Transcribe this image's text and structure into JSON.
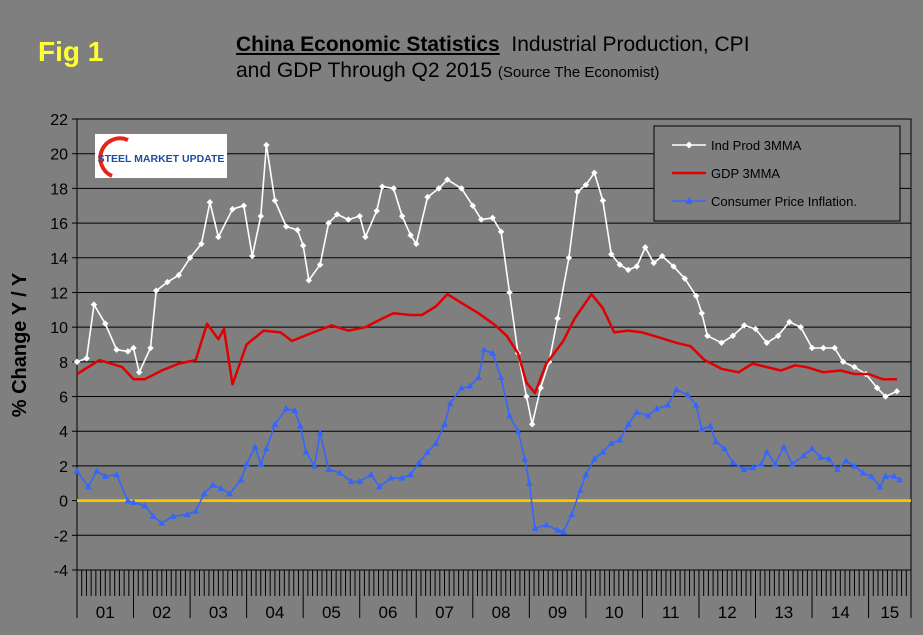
{
  "fig_label": "Fig 1",
  "title": {
    "main": "China Economic Statistics",
    "rest_line1": "Industrial Production, CPI",
    "line2": "and GDP Through Q2 2015",
    "source": "(Source The Economist)"
  },
  "logo": {
    "text": "STEEL MARKET UPDATE"
  },
  "colors": {
    "background": "#7f7f7f",
    "plot_background": "#7f7f7f",
    "ind_prod": "#ffffff",
    "gdp": "#e00000",
    "cpi": "#3366ff",
    "zero_line": "#ffcc00",
    "fig_label": "#ffff33"
  },
  "chart_data": {
    "type": "line",
    "title": "China Economic Statistics Industrial Production, CPI and GDP Through Q2 2015",
    "xlabel": "",
    "ylabel": "% Change Y / Y",
    "ylim": [
      -4,
      22
    ],
    "yticks": [
      "-4",
      "-2",
      "0",
      "2",
      "4",
      "6",
      "8",
      "10",
      "12",
      "14",
      "16",
      "18",
      "20",
      "22"
    ],
    "xlim": [
      2001.0,
      2015.75
    ],
    "categories": [
      "01",
      "02",
      "03",
      "04",
      "05",
      "06",
      "07",
      "08",
      "09",
      "10",
      "11",
      "12",
      "13",
      "14",
      "15"
    ],
    "grid": "horizontal",
    "legend": "top-right",
    "reference_line": 0,
    "series": [
      {
        "name": "Ind Prod 3MMA",
        "marker": "diamond",
        "points": [
          [
            2001.0,
            8.0
          ],
          [
            2001.17,
            8.2
          ],
          [
            2001.3,
            11.3
          ],
          [
            2001.5,
            10.2
          ],
          [
            2001.7,
            8.7
          ],
          [
            2001.9,
            8.6
          ],
          [
            2002.0,
            8.8
          ],
          [
            2002.1,
            7.4
          ],
          [
            2002.3,
            8.8
          ],
          [
            2002.4,
            12.1
          ],
          [
            2002.6,
            12.6
          ],
          [
            2002.8,
            13.0
          ],
          [
            2003.0,
            14.0
          ],
          [
            2003.2,
            14.8
          ],
          [
            2003.35,
            17.2
          ],
          [
            2003.5,
            15.2
          ],
          [
            2003.75,
            16.8
          ],
          [
            2003.95,
            17.0
          ],
          [
            2004.1,
            14.1
          ],
          [
            2004.25,
            16.4
          ],
          [
            2004.35,
            20.5
          ],
          [
            2004.5,
            17.3
          ],
          [
            2004.7,
            15.8
          ],
          [
            2004.9,
            15.6
          ],
          [
            2005.0,
            14.7
          ],
          [
            2005.1,
            12.7
          ],
          [
            2005.3,
            13.6
          ],
          [
            2005.45,
            16.0
          ],
          [
            2005.6,
            16.5
          ],
          [
            2005.8,
            16.2
          ],
          [
            2006.0,
            16.4
          ],
          [
            2006.1,
            15.2
          ],
          [
            2006.3,
            16.7
          ],
          [
            2006.4,
            18.1
          ],
          [
            2006.6,
            18.0
          ],
          [
            2006.75,
            16.4
          ],
          [
            2006.9,
            15.3
          ],
          [
            2007.0,
            14.8
          ],
          [
            2007.2,
            17.5
          ],
          [
            2007.4,
            18.0
          ],
          [
            2007.55,
            18.5
          ],
          [
            2007.8,
            18.0
          ],
          [
            2008.0,
            17.0
          ],
          [
            2008.15,
            16.2
          ],
          [
            2008.35,
            16.3
          ],
          [
            2008.5,
            15.5
          ],
          [
            2008.65,
            12.0
          ],
          [
            2008.8,
            8.5
          ],
          [
            2008.95,
            6.0
          ],
          [
            2009.05,
            4.4
          ],
          [
            2009.2,
            6.5
          ],
          [
            2009.35,
            8.0
          ],
          [
            2009.5,
            10.5
          ],
          [
            2009.7,
            14.0
          ],
          [
            2009.85,
            17.8
          ],
          [
            2010.0,
            18.2
          ],
          [
            2010.15,
            18.9
          ],
          [
            2010.3,
            17.3
          ],
          [
            2010.45,
            14.2
          ],
          [
            2010.6,
            13.6
          ],
          [
            2010.75,
            13.3
          ],
          [
            2010.9,
            13.5
          ],
          [
            2011.05,
            14.6
          ],
          [
            2011.2,
            13.7
          ],
          [
            2011.35,
            14.1
          ],
          [
            2011.55,
            13.5
          ],
          [
            2011.75,
            12.8
          ],
          [
            2011.95,
            11.8
          ],
          [
            2012.05,
            10.8
          ],
          [
            2012.15,
            9.5
          ],
          [
            2012.4,
            9.1
          ],
          [
            2012.6,
            9.5
          ],
          [
            2012.8,
            10.1
          ],
          [
            2013.0,
            9.9
          ],
          [
            2013.2,
            9.1
          ],
          [
            2013.4,
            9.5
          ],
          [
            2013.6,
            10.3
          ],
          [
            2013.8,
            10.0
          ],
          [
            2014.0,
            8.8
          ],
          [
            2014.2,
            8.8
          ],
          [
            2014.4,
            8.8
          ],
          [
            2014.55,
            8.0
          ],
          [
            2014.75,
            7.7
          ],
          [
            2014.95,
            7.3
          ],
          [
            2015.15,
            6.5
          ],
          [
            2015.3,
            6.0
          ],
          [
            2015.5,
            6.3
          ]
        ]
      },
      {
        "name": "GDP 3MMA",
        "marker": "none",
        "points": [
          [
            2001.0,
            7.3
          ],
          [
            2001.4,
            8.1
          ],
          [
            2001.8,
            7.7
          ],
          [
            2002.0,
            7.0
          ],
          [
            2002.2,
            7.0
          ],
          [
            2002.5,
            7.5
          ],
          [
            2002.8,
            7.9
          ],
          [
            2003.1,
            8.1
          ],
          [
            2003.3,
            10.2
          ],
          [
            2003.5,
            9.3
          ],
          [
            2003.6,
            9.9
          ],
          [
            2003.75,
            6.7
          ],
          [
            2004.0,
            9.0
          ],
          [
            2004.3,
            9.8
          ],
          [
            2004.6,
            9.7
          ],
          [
            2004.8,
            9.2
          ],
          [
            2005.1,
            9.6
          ],
          [
            2005.5,
            10.1
          ],
          [
            2005.8,
            9.8
          ],
          [
            2006.1,
            10.0
          ],
          [
            2006.4,
            10.5
          ],
          [
            2006.6,
            10.8
          ],
          [
            2006.9,
            10.7
          ],
          [
            2007.1,
            10.7
          ],
          [
            2007.35,
            11.2
          ],
          [
            2007.55,
            11.9
          ],
          [
            2007.8,
            11.4
          ],
          [
            2008.1,
            10.8
          ],
          [
            2008.4,
            10.1
          ],
          [
            2008.6,
            9.5
          ],
          [
            2008.8,
            8.5
          ],
          [
            2008.95,
            6.8
          ],
          [
            2009.1,
            6.2
          ],
          [
            2009.3,
            7.9
          ],
          [
            2009.6,
            9.2
          ],
          [
            2009.8,
            10.5
          ],
          [
            2010.1,
            11.9
          ],
          [
            2010.3,
            11.1
          ],
          [
            2010.5,
            9.7
          ],
          [
            2010.75,
            9.8
          ],
          [
            2011.0,
            9.7
          ],
          [
            2011.3,
            9.4
          ],
          [
            2011.6,
            9.1
          ],
          [
            2011.85,
            8.9
          ],
          [
            2012.1,
            8.1
          ],
          [
            2012.4,
            7.6
          ],
          [
            2012.7,
            7.4
          ],
          [
            2012.95,
            7.9
          ],
          [
            2013.2,
            7.7
          ],
          [
            2013.45,
            7.5
          ],
          [
            2013.7,
            7.8
          ],
          [
            2013.9,
            7.7
          ],
          [
            2014.2,
            7.4
          ],
          [
            2014.5,
            7.5
          ],
          [
            2014.75,
            7.3
          ],
          [
            2015.0,
            7.3
          ],
          [
            2015.25,
            7.0
          ],
          [
            2015.5,
            7.0
          ]
        ]
      },
      {
        "name": "Consumer Price Inflation.",
        "marker": "triangle",
        "points": [
          [
            2001.0,
            1.7
          ],
          [
            2001.2,
            0.8
          ],
          [
            2001.35,
            1.7
          ],
          [
            2001.5,
            1.4
          ],
          [
            2001.7,
            1.5
          ],
          [
            2001.9,
            0.0
          ],
          [
            2002.0,
            -0.1
          ],
          [
            2002.2,
            -0.3
          ],
          [
            2002.35,
            -0.9
          ],
          [
            2002.5,
            -1.3
          ],
          [
            2002.7,
            -0.9
          ],
          [
            2002.95,
            -0.8
          ],
          [
            2003.1,
            -0.6
          ],
          [
            2003.25,
            0.4
          ],
          [
            2003.4,
            0.9
          ],
          [
            2003.55,
            0.7
          ],
          [
            2003.7,
            0.4
          ],
          [
            2003.9,
            1.2
          ],
          [
            2004.0,
            2.1
          ],
          [
            2004.15,
            3.1
          ],
          [
            2004.25,
            2.1
          ],
          [
            2004.35,
            3.0
          ],
          [
            2004.5,
            4.4
          ],
          [
            2004.7,
            5.3
          ],
          [
            2004.85,
            5.2
          ],
          [
            2004.95,
            4.3
          ],
          [
            2005.05,
            2.8
          ],
          [
            2005.2,
            2.0
          ],
          [
            2005.3,
            3.9
          ],
          [
            2005.45,
            1.8
          ],
          [
            2005.65,
            1.6
          ],
          [
            2005.85,
            1.1
          ],
          [
            2006.0,
            1.1
          ],
          [
            2006.2,
            1.5
          ],
          [
            2006.35,
            0.8
          ],
          [
            2006.55,
            1.3
          ],
          [
            2006.75,
            1.3
          ],
          [
            2006.9,
            1.5
          ],
          [
            2007.05,
            2.2
          ],
          [
            2007.2,
            2.8
          ],
          [
            2007.35,
            3.3
          ],
          [
            2007.5,
            4.4
          ],
          [
            2007.6,
            5.6
          ],
          [
            2007.8,
            6.5
          ],
          [
            2007.95,
            6.6
          ],
          [
            2008.1,
            7.1
          ],
          [
            2008.2,
            8.7
          ],
          [
            2008.35,
            8.5
          ],
          [
            2008.5,
            7.1
          ],
          [
            2008.65,
            4.9
          ],
          [
            2008.8,
            4.0
          ],
          [
            2008.92,
            2.4
          ],
          [
            2009.0,
            1.0
          ],
          [
            2009.1,
            -1.6
          ],
          [
            2009.3,
            -1.4
          ],
          [
            2009.5,
            -1.7
          ],
          [
            2009.6,
            -1.8
          ],
          [
            2009.75,
            -0.8
          ],
          [
            2009.9,
            0.6
          ],
          [
            2010.0,
            1.5
          ],
          [
            2010.15,
            2.4
          ],
          [
            2010.3,
            2.8
          ],
          [
            2010.45,
            3.3
          ],
          [
            2010.6,
            3.5
          ],
          [
            2010.75,
            4.4
          ],
          [
            2010.9,
            5.1
          ],
          [
            2011.1,
            4.9
          ],
          [
            2011.25,
            5.3
          ],
          [
            2011.45,
            5.5
          ],
          [
            2011.6,
            6.4
          ],
          [
            2011.8,
            6.1
          ],
          [
            2011.95,
            5.5
          ],
          [
            2012.05,
            4.1
          ],
          [
            2012.2,
            4.3
          ],
          [
            2012.3,
            3.4
          ],
          [
            2012.45,
            3.0
          ],
          [
            2012.6,
            2.2
          ],
          [
            2012.8,
            1.8
          ],
          [
            2012.95,
            1.9
          ],
          [
            2013.1,
            2.1
          ],
          [
            2013.2,
            2.8
          ],
          [
            2013.35,
            2.1
          ],
          [
            2013.5,
            3.1
          ],
          [
            2013.65,
            2.1
          ],
          [
            2013.85,
            2.6
          ],
          [
            2014.0,
            3.0
          ],
          [
            2014.15,
            2.5
          ],
          [
            2014.3,
            2.4
          ],
          [
            2014.45,
            1.8
          ],
          [
            2014.6,
            2.3
          ],
          [
            2014.75,
            2.0
          ],
          [
            2014.9,
            1.6
          ],
          [
            2015.05,
            1.4
          ],
          [
            2015.2,
            0.8
          ],
          [
            2015.3,
            1.4
          ],
          [
            2015.45,
            1.4
          ],
          [
            2015.55,
            1.2
          ]
        ]
      }
    ]
  }
}
